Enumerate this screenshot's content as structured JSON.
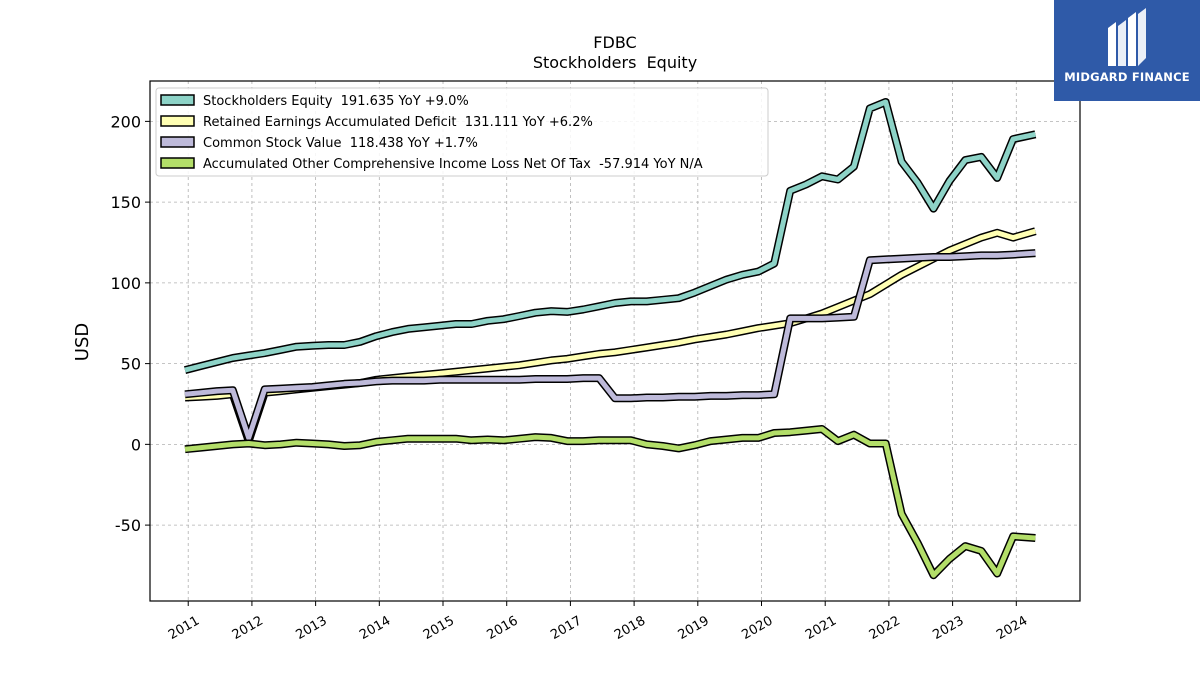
{
  "brand": {
    "name": "MIDGARD FINANCE",
    "bg_color": "#2f5aa8"
  },
  "chart_data": {
    "type": "line",
    "title": "FDBC",
    "subtitle": "Stockholders  Equity",
    "ylabel": "USD",
    "xlabel": "",
    "ylim": [
      -97,
      225
    ],
    "xlim": [
      2010.4,
      2025.0
    ],
    "yticks": [
      -50,
      0,
      50,
      100,
      150,
      200
    ],
    "xticks": [
      2011,
      2012,
      2013,
      2014,
      2015,
      2016,
      2017,
      2018,
      2019,
      2020,
      2021,
      2022,
      2023,
      2024
    ],
    "grid": true,
    "legend_position": "top-left",
    "series": [
      {
        "name": "Stockholders Equity  191.635 YoY +9.0%",
        "color": "#8dd3c7",
        "points": [
          [
            2010.95,
            46
          ],
          [
            2011.2,
            48.5
          ],
          [
            2011.45,
            51
          ],
          [
            2011.7,
            53.5
          ],
          [
            2011.95,
            55
          ],
          [
            2012.2,
            56.5
          ],
          [
            2012.45,
            58.5
          ],
          [
            2012.7,
            60.5
          ],
          [
            2012.95,
            61
          ],
          [
            2013.2,
            61.5
          ],
          [
            2013.45,
            61.5
          ],
          [
            2013.7,
            63.5
          ],
          [
            2013.95,
            67
          ],
          [
            2014.2,
            69.5
          ],
          [
            2014.45,
            71.5
          ],
          [
            2014.7,
            72.5
          ],
          [
            2014.95,
            73.5
          ],
          [
            2015.2,
            74.5
          ],
          [
            2015.45,
            74.5
          ],
          [
            2015.7,
            76.5
          ],
          [
            2015.95,
            77.5
          ],
          [
            2016.2,
            79.5
          ],
          [
            2016.45,
            81.5
          ],
          [
            2016.7,
            82.5
          ],
          [
            2016.95,
            82
          ],
          [
            2017.2,
            83.5
          ],
          [
            2017.45,
            85.5
          ],
          [
            2017.7,
            87.5
          ],
          [
            2017.95,
            88.5
          ],
          [
            2018.2,
            88.5
          ],
          [
            2018.45,
            89.5
          ],
          [
            2018.7,
            90.5
          ],
          [
            2018.95,
            94
          ],
          [
            2019.2,
            98
          ],
          [
            2019.45,
            102
          ],
          [
            2019.7,
            105
          ],
          [
            2019.95,
            107
          ],
          [
            2020.2,
            112
          ],
          [
            2020.45,
            157
          ],
          [
            2020.7,
            161
          ],
          [
            2020.95,
            166
          ],
          [
            2021.2,
            164
          ],
          [
            2021.45,
            172
          ],
          [
            2021.7,
            208
          ],
          [
            2021.95,
            212
          ],
          [
            2022.2,
            175
          ],
          [
            2022.45,
            162
          ],
          [
            2022.7,
            146
          ],
          [
            2022.95,
            163
          ],
          [
            2023.2,
            176
          ],
          [
            2023.45,
            178
          ],
          [
            2023.7,
            165
          ],
          [
            2023.95,
            189
          ],
          [
            2024.3,
            192
          ]
        ]
      },
      {
        "name": "Retained Earnings Accumulated Deficit  131.111 YoY +6.2%",
        "color": "#ffffb3",
        "points": [
          [
            2010.95,
            29
          ],
          [
            2011.2,
            29.5
          ],
          [
            2011.45,
            30
          ],
          [
            2011.7,
            31
          ],
          [
            2011.95,
            2
          ],
          [
            2012.2,
            32
          ],
          [
            2012.45,
            33
          ],
          [
            2012.7,
            34
          ],
          [
            2012.95,
            35
          ],
          [
            2013.2,
            36
          ],
          [
            2013.45,
            37
          ],
          [
            2013.7,
            38
          ],
          [
            2013.95,
            40
          ],
          [
            2014.2,
            41
          ],
          [
            2014.45,
            42
          ],
          [
            2014.7,
            43
          ],
          [
            2014.95,
            44
          ],
          [
            2015.2,
            45
          ],
          [
            2015.45,
            46
          ],
          [
            2015.7,
            47
          ],
          [
            2015.95,
            48
          ],
          [
            2016.2,
            49
          ],
          [
            2016.45,
            50.5
          ],
          [
            2016.7,
            52
          ],
          [
            2016.95,
            53
          ],
          [
            2017.2,
            54.5
          ],
          [
            2017.45,
            56
          ],
          [
            2017.7,
            57
          ],
          [
            2017.95,
            58.5
          ],
          [
            2018.2,
            60
          ],
          [
            2018.45,
            61.5
          ],
          [
            2018.7,
            63
          ],
          [
            2018.95,
            65
          ],
          [
            2019.2,
            66.5
          ],
          [
            2019.45,
            68
          ],
          [
            2019.7,
            70
          ],
          [
            2019.95,
            72
          ],
          [
            2020.2,
            73.5
          ],
          [
            2020.45,
            75
          ],
          [
            2020.7,
            78
          ],
          [
            2020.95,
            81
          ],
          [
            2021.2,
            85
          ],
          [
            2021.45,
            89
          ],
          [
            2021.7,
            93
          ],
          [
            2021.95,
            99
          ],
          [
            2022.2,
            105
          ],
          [
            2022.45,
            110
          ],
          [
            2022.7,
            115
          ],
          [
            2022.95,
            120
          ],
          [
            2023.2,
            124
          ],
          [
            2023.45,
            128
          ],
          [
            2023.7,
            131
          ],
          [
            2023.95,
            128
          ],
          [
            2024.3,
            132
          ]
        ]
      },
      {
        "name": "Common Stock Value  118.438 YoY +1.7%",
        "color": "#bebada",
        "points": [
          [
            2010.95,
            31
          ],
          [
            2011.2,
            32
          ],
          [
            2011.45,
            33
          ],
          [
            2011.7,
            33.5
          ],
          [
            2011.95,
            4
          ],
          [
            2012.2,
            34
          ],
          [
            2012.45,
            34.5
          ],
          [
            2012.7,
            35
          ],
          [
            2012.95,
            35.5
          ],
          [
            2013.2,
            36.5
          ],
          [
            2013.45,
            37.5
          ],
          [
            2013.7,
            38
          ],
          [
            2013.95,
            39
          ],
          [
            2014.2,
            39.5
          ],
          [
            2014.45,
            39.5
          ],
          [
            2014.7,
            39.5
          ],
          [
            2014.95,
            40
          ],
          [
            2015.2,
            40
          ],
          [
            2015.45,
            40
          ],
          [
            2015.7,
            40
          ],
          [
            2015.95,
            40
          ],
          [
            2016.2,
            40
          ],
          [
            2016.45,
            40.5
          ],
          [
            2016.7,
            40.5
          ],
          [
            2016.95,
            40.5
          ],
          [
            2017.2,
            41
          ],
          [
            2017.45,
            41
          ],
          [
            2017.7,
            28.5
          ],
          [
            2017.95,
            28.5
          ],
          [
            2018.2,
            29
          ],
          [
            2018.45,
            29
          ],
          [
            2018.7,
            29.5
          ],
          [
            2018.95,
            29.5
          ],
          [
            2019.2,
            30
          ],
          [
            2019.45,
            30
          ],
          [
            2019.7,
            30.5
          ],
          [
            2019.95,
            30.5
          ],
          [
            2020.2,
            31
          ],
          [
            2020.45,
            78
          ],
          [
            2020.7,
            78
          ],
          [
            2020.95,
            78
          ],
          [
            2021.2,
            78.5
          ],
          [
            2021.45,
            79
          ],
          [
            2021.7,
            114
          ],
          [
            2021.95,
            114.5
          ],
          [
            2022.2,
            115
          ],
          [
            2022.45,
            115.5
          ],
          [
            2022.7,
            116
          ],
          [
            2022.95,
            116
          ],
          [
            2023.2,
            116.5
          ],
          [
            2023.45,
            117
          ],
          [
            2023.7,
            117
          ],
          [
            2023.95,
            117.5
          ],
          [
            2024.3,
            118.4
          ]
        ]
      },
      {
        "name": "Accumulated Other Comprehensive Income Loss Net Of Tax  -57.914 YoY N/A",
        "color": "#b3de69",
        "points": [
          [
            2010.95,
            -3
          ],
          [
            2011.2,
            -2
          ],
          [
            2011.45,
            -1
          ],
          [
            2011.7,
            0
          ],
          [
            2011.95,
            0.5
          ],
          [
            2012.2,
            -0.5
          ],
          [
            2012.45,
            0
          ],
          [
            2012.7,
            1
          ],
          [
            2012.95,
            0.5
          ],
          [
            2013.2,
            0
          ],
          [
            2013.45,
            -1
          ],
          [
            2013.7,
            -0.5
          ],
          [
            2013.95,
            1.5
          ],
          [
            2014.2,
            2.5
          ],
          [
            2014.45,
            3.5
          ],
          [
            2014.7,
            3.5
          ],
          [
            2014.95,
            3.5
          ],
          [
            2015.2,
            3.5
          ],
          [
            2015.45,
            2.5
          ],
          [
            2015.7,
            3
          ],
          [
            2015.95,
            2.5
          ],
          [
            2016.2,
            3.5
          ],
          [
            2016.45,
            4.5
          ],
          [
            2016.7,
            4
          ],
          [
            2016.95,
            2
          ],
          [
            2017.2,
            2
          ],
          [
            2017.45,
            2.5
          ],
          [
            2017.7,
            2.5
          ],
          [
            2017.95,
            2.5
          ],
          [
            2018.2,
            0
          ],
          [
            2018.45,
            -1
          ],
          [
            2018.7,
            -2.5
          ],
          [
            2018.95,
            -0.5
          ],
          [
            2019.2,
            2
          ],
          [
            2019.45,
            3
          ],
          [
            2019.7,
            4
          ],
          [
            2019.95,
            4
          ],
          [
            2020.2,
            7
          ],
          [
            2020.45,
            7.5
          ],
          [
            2020.7,
            8.5
          ],
          [
            2020.95,
            9.5
          ],
          [
            2021.2,
            2
          ],
          [
            2021.45,
            6
          ],
          [
            2021.7,
            0.5
          ],
          [
            2021.95,
            0.5
          ],
          [
            2022.2,
            -43
          ],
          [
            2022.45,
            -61
          ],
          [
            2022.7,
            -81
          ],
          [
            2022.95,
            -71
          ],
          [
            2023.2,
            -63
          ],
          [
            2023.45,
            -66
          ],
          [
            2023.7,
            -80
          ],
          [
            2023.95,
            -57
          ],
          [
            2024.3,
            -58
          ]
        ]
      }
    ]
  }
}
